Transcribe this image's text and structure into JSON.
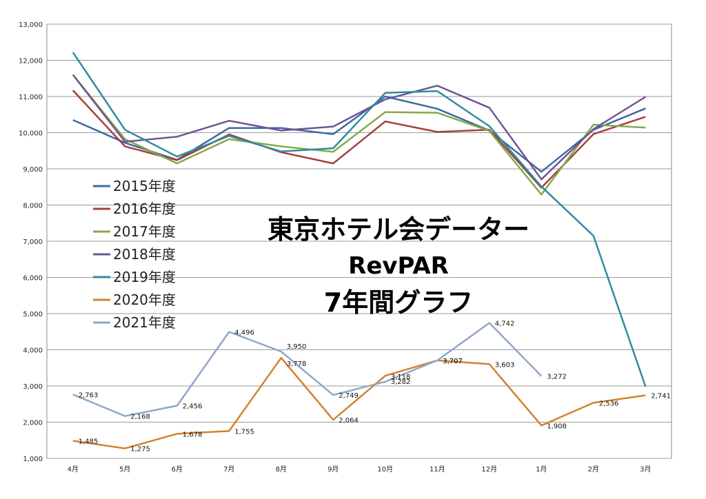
{
  "chart_data": {
    "type": "line",
    "title_lines": [
      "東京ホテル会データー",
      "RevPAR",
      "7年間グラフ"
    ],
    "categories": [
      "4月",
      "5月",
      "6月",
      "7月",
      "8月",
      "9月",
      "10月",
      "11月",
      "12月",
      "1月",
      "2月",
      "3月"
    ],
    "ylim": [
      1000,
      13000
    ],
    "yticks": [
      1000,
      2000,
      3000,
      4000,
      5000,
      6000,
      7000,
      8000,
      9000,
      10000,
      11000,
      12000,
      13000
    ],
    "ytick_labels": [
      "1,000",
      "2,000",
      "3,000",
      "4,000",
      "5,000",
      "6,000",
      "7,000",
      "8,000",
      "9,000",
      "10,000",
      "11,000",
      "12,000",
      "13,000"
    ],
    "grid": true,
    "legend_position": "left",
    "series": [
      {
        "name": "2015年度",
        "color": "#3b6aa0",
        "values": [
          10350,
          9720,
          9250,
          10130,
          10130,
          9960,
          11000,
          10660,
          10060,
          8920,
          10080,
          10670
        ]
      },
      {
        "name": "2016年度",
        "color": "#a53f3c",
        "values": [
          11170,
          9620,
          9240,
          9950,
          9460,
          9150,
          10310,
          10020,
          10080,
          8480,
          9960,
          10440
        ]
      },
      {
        "name": "2017年度",
        "color": "#86a84a",
        "values": [
          11600,
          9820,
          9150,
          9820,
          9620,
          9470,
          10570,
          10550,
          10050,
          8290,
          10220,
          10140
        ]
      },
      {
        "name": "2018年度",
        "color": "#6f5496",
        "values": [
          11600,
          9750,
          9890,
          10330,
          10060,
          10170,
          10920,
          11300,
          10690,
          8710,
          10100,
          10990
        ]
      },
      {
        "name": "2019年度",
        "color": "#2e8b9e",
        "values": [
          12220,
          10080,
          9340,
          9910,
          9480,
          9570,
          11100,
          11150,
          10180,
          8510,
          7150,
          2980
        ]
      },
      {
        "name": "2020年度",
        "color": "#d4812d",
        "values": [
          1485,
          1275,
          1678,
          1755,
          3778,
          2064,
          3282,
          3707,
          3603,
          1908,
          2536,
          2741
        ],
        "labels": [
          "1,485",
          "1,275",
          "1,678",
          "1,755",
          "3,778",
          "2,064",
          "3,282",
          "3,707",
          "3,603",
          "1,908",
          "2,536",
          "2,741"
        ]
      },
      {
        "name": "2021年度",
        "color": "#8fa7c8",
        "values": [
          2763,
          2168,
          2456,
          4496,
          3950,
          2749,
          3118,
          3707,
          4742,
          3272,
          null,
          null
        ],
        "labels": [
          "2,763",
          "2,168",
          "2,456",
          "4,496",
          "3,950",
          "2,749",
          "3,118",
          "3,707",
          "4,742",
          "3,272",
          null,
          null
        ]
      }
    ]
  }
}
